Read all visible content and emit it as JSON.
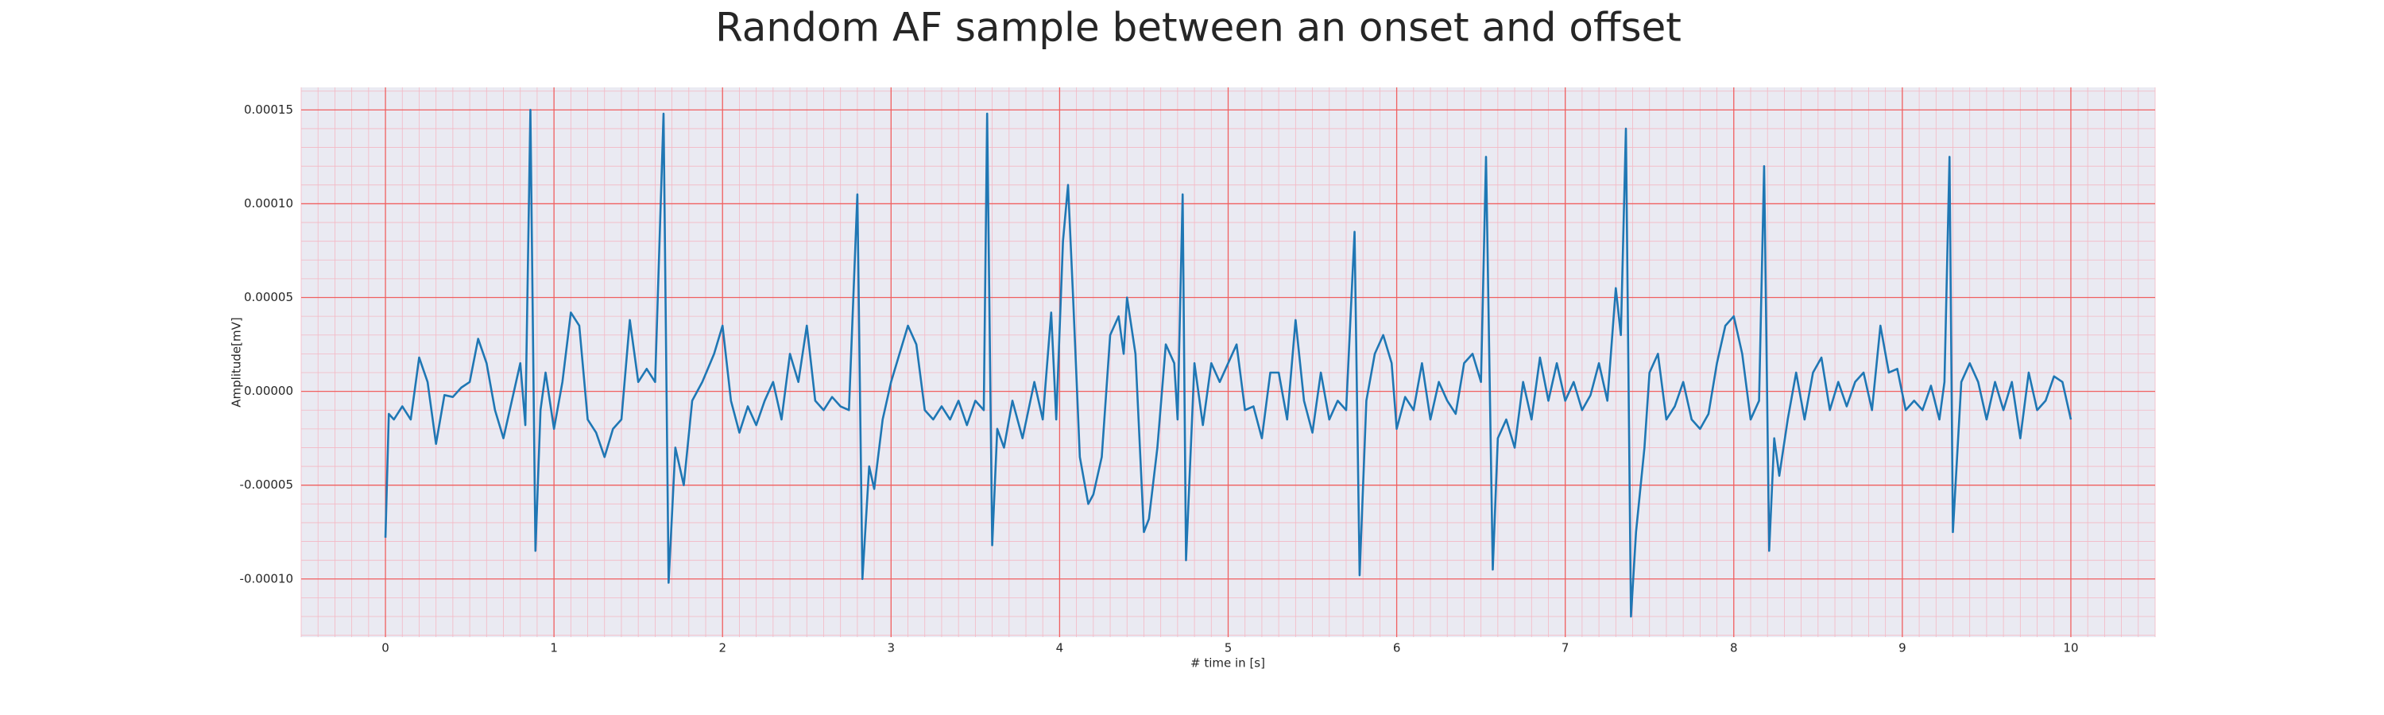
{
  "chart_data": {
    "type": "line",
    "title": "Random AF sample between an onset and offset",
    "x_label": "# time in [s]",
    "y_label": "Amplitude[mV]",
    "xlim": [
      -0.5,
      10.5
    ],
    "ylim": [
      -0.000131,
      0.000162
    ],
    "xticks": [
      0,
      1,
      2,
      3,
      4,
      5,
      6,
      7,
      8,
      9,
      10
    ],
    "yticks": [
      {
        "value": -0.0001,
        "label": "-0.00010"
      },
      {
        "value": -5e-05,
        "label": "-0.00005"
      },
      {
        "value": 0,
        "label": "0.00000"
      },
      {
        "value": 5e-05,
        "label": "0.00005"
      },
      {
        "value": 0.0001,
        "label": "0.00010"
      },
      {
        "value": 0.00015,
        "label": "0.00015"
      }
    ],
    "grid": true,
    "series": [
      {
        "color": "#1f77b4",
        "x": [
          0,
          0.02,
          0.05,
          0.1,
          0.15,
          0.2,
          0.25,
          0.3,
          0.35,
          0.4,
          0.45,
          0.5,
          0.55,
          0.6,
          0.65,
          0.7,
          0.75,
          0.8,
          0.83,
          0.86,
          0.89,
          0.92,
          0.95,
          1.0,
          1.05,
          1.1,
          1.15,
          1.2,
          1.25,
          1.3,
          1.35,
          1.4,
          1.45,
          1.5,
          1.55,
          1.6,
          1.65,
          1.68,
          1.72,
          1.77,
          1.82,
          1.88,
          1.95,
          2.0,
          2.05,
          2.1,
          2.15,
          2.2,
          2.25,
          2.3,
          2.35,
          2.4,
          2.45,
          2.5,
          2.55,
          2.6,
          2.65,
          2.7,
          2.75,
          2.8,
          2.83,
          2.87,
          2.9,
          2.95,
          3.0,
          3.05,
          3.1,
          3.15,
          3.2,
          3.25,
          3.3,
          3.35,
          3.4,
          3.45,
          3.5,
          3.55,
          3.57,
          3.6,
          3.63,
          3.67,
          3.72,
          3.78,
          3.85,
          3.9,
          3.95,
          3.98,
          4.02,
          4.05,
          4.08,
          4.12,
          4.17,
          4.2,
          4.25,
          4.3,
          4.35,
          4.38,
          4.4,
          4.45,
          4.5,
          4.53,
          4.58,
          4.63,
          4.68,
          4.7,
          4.73,
          4.75,
          4.8,
          4.85,
          4.9,
          4.95,
          5.0,
          5.05,
          5.1,
          5.15,
          5.2,
          5.25,
          5.3,
          5.35,
          5.4,
          5.45,
          5.5,
          5.55,
          5.6,
          5.65,
          5.7,
          5.75,
          5.78,
          5.82,
          5.87,
          5.92,
          5.97,
          6.0,
          6.05,
          6.1,
          6.15,
          6.2,
          6.25,
          6.3,
          6.35,
          6.4,
          6.45,
          6.5,
          6.53,
          6.57,
          6.6,
          6.65,
          6.7,
          6.75,
          6.8,
          6.85,
          6.9,
          6.95,
          7.0,
          7.05,
          7.1,
          7.15,
          7.2,
          7.25,
          7.3,
          7.33,
          7.36,
          7.39,
          7.42,
          7.47,
          7.5,
          7.55,
          7.6,
          7.65,
          7.7,
          7.75,
          7.8,
          7.85,
          7.9,
          7.95,
          8.0,
          8.05,
          8.1,
          8.15,
          8.18,
          8.21,
          8.24,
          8.27,
          8.32,
          8.37,
          8.42,
          8.47,
          8.52,
          8.57,
          8.62,
          8.67,
          8.72,
          8.77,
          8.82,
          8.87,
          8.92,
          8.97,
          9.02,
          9.07,
          9.12,
          9.17,
          9.22,
          9.25,
          9.28,
          9.3,
          9.35,
          9.4,
          9.45,
          9.5,
          9.55,
          9.6,
          9.65,
          9.7,
          9.75,
          9.8,
          9.85,
          9.9,
          9.95,
          10.0
        ],
        "values": [
          -7.8e-05,
          -1.2e-05,
          -1.5e-05,
          -8e-06,
          -1.5e-05,
          1.8e-05,
          5e-06,
          -2.8e-05,
          -2e-06,
          -3e-06,
          2e-06,
          5e-06,
          2.8e-05,
          1.5e-05,
          -1e-05,
          -2.5e-05,
          -5e-06,
          1.5e-05,
          -1.8e-05,
          0.00015,
          -8.5e-05,
          -1e-05,
          1e-05,
          -2e-05,
          5e-06,
          4.2e-05,
          3.5e-05,
          -1.5e-05,
          -2.2e-05,
          -3.5e-05,
          -2e-05,
          -1.5e-05,
          3.8e-05,
          5e-06,
          1.2e-05,
          5e-06,
          0.000148,
          -0.000102,
          -3e-05,
          -5e-05,
          -5e-06,
          5e-06,
          2e-05,
          3.5e-05,
          -5e-06,
          -2.2e-05,
          -8e-06,
          -1.8e-05,
          -5e-06,
          5e-06,
          -1.5e-05,
          2e-05,
          5e-06,
          3.5e-05,
          -5e-06,
          -1e-05,
          -3e-06,
          -8e-06,
          -1e-05,
          0.000105,
          -0.0001,
          -4e-05,
          -5.2e-05,
          -1.5e-05,
          5e-06,
          2e-05,
          3.5e-05,
          2.5e-05,
          -1e-05,
          -1.5e-05,
          -8e-06,
          -1.5e-05,
          -5e-06,
          -1.8e-05,
          -5e-06,
          -1e-05,
          0.000148,
          -8.2e-05,
          -2e-05,
          -3e-05,
          -5e-06,
          -2.5e-05,
          5e-06,
          -1.5e-05,
          4.2e-05,
          -1.5e-05,
          8e-05,
          0.00011,
          5e-05,
          -3.5e-05,
          -6e-05,
          -5.5e-05,
          -3.5e-05,
          3e-05,
          4e-05,
          2e-05,
          5e-05,
          2e-05,
          -7.5e-05,
          -6.8e-05,
          -3e-05,
          2.5e-05,
          1.5e-05,
          -1.5e-05,
          0.000105,
          -9e-05,
          1.5e-05,
          -1.8e-05,
          1.5e-05,
          5e-06,
          1.5e-05,
          2.5e-05,
          -1e-05,
          -8e-06,
          -2.5e-05,
          1e-05,
          1e-05,
          -1.5e-05,
          3.8e-05,
          -5e-06,
          -2.2e-05,
          1e-05,
          -1.5e-05,
          -5e-06,
          -1e-05,
          8.5e-05,
          -9.8e-05,
          -5e-06,
          2e-05,
          3e-05,
          1.5e-05,
          -2e-05,
          -3e-06,
          -1e-05,
          1.5e-05,
          -1.5e-05,
          5e-06,
          -5e-06,
          -1.2e-05,
          1.5e-05,
          2e-05,
          5e-06,
          0.000125,
          -9.5e-05,
          -2.5e-05,
          -1.5e-05,
          -3e-05,
          5e-06,
          -1.5e-05,
          1.8e-05,
          -5e-06,
          1.5e-05,
          -5e-06,
          5e-06,
          -1e-05,
          -2e-06,
          1.5e-05,
          -5e-06,
          5.5e-05,
          3e-05,
          0.00014,
          -0.00012,
          -7.5e-05,
          -3e-05,
          1e-05,
          2e-05,
          -1.5e-05,
          -8e-06,
          5e-06,
          -1.5e-05,
          -2e-05,
          -1.2e-05,
          1.5e-05,
          3.5e-05,
          4e-05,
          2e-05,
          -1.5e-05,
          -5e-06,
          0.00012,
          -8.5e-05,
          -2.5e-05,
          -4.5e-05,
          -1.5e-05,
          1e-05,
          -1.5e-05,
          1e-05,
          1.8e-05,
          -1e-05,
          5e-06,
          -8e-06,
          5e-06,
          1e-05,
          -1e-05,
          3.5e-05,
          1e-05,
          1.2e-05,
          -1e-05,
          -5e-06,
          -1e-05,
          3e-06,
          -1.5e-05,
          5e-06,
          0.000125,
          -7.5e-05,
          5e-06,
          1.5e-05,
          5e-06,
          -1.5e-05,
          5e-06,
          -1e-05,
          5e-06,
          -2.5e-05,
          1e-05,
          -1e-05,
          -5e-06,
          8e-06,
          5e-06,
          -1.5e-05
        ]
      }
    ]
  }
}
